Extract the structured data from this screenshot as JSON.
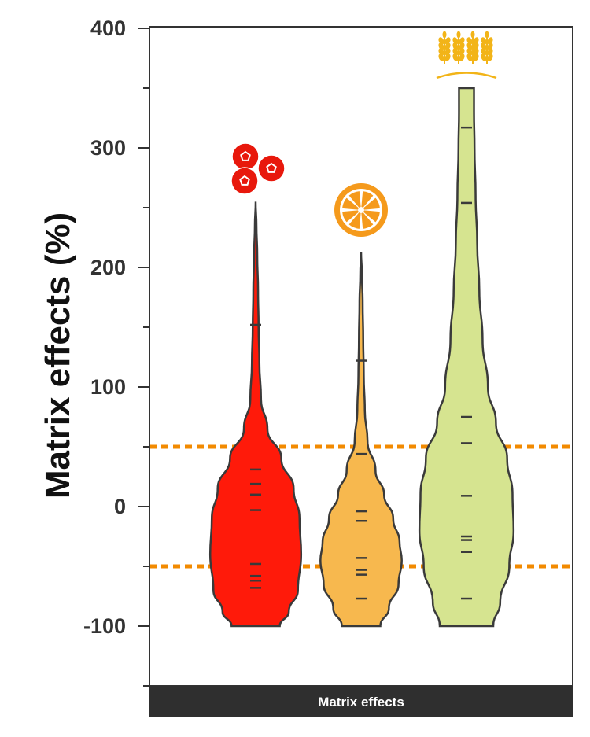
{
  "chart_data": {
    "type": "violin",
    "ylabel": "Matrix effects (%)",
    "xlabel": "Matrix effects",
    "ylim": [
      -150,
      400
    ],
    "yticks": [
      400,
      300,
      200,
      100,
      0,
      -100
    ],
    "ytick_labels": [
      "400",
      "300",
      "200",
      "100",
      "0",
      "-100"
    ],
    "reference_lines": [
      50,
      -50
    ],
    "reference_line_color": "#f28a00",
    "series": [
      {
        "icon": "berries-icon",
        "color": "#ff1a0a",
        "range": [
          -100,
          255
        ],
        "points": [
          152,
          31,
          19,
          10,
          -3,
          -48,
          -58,
          -62,
          -68
        ],
        "profile": [
          [
            -100,
            0.45
          ],
          [
            -88,
            0.62
          ],
          [
            -70,
            0.79
          ],
          [
            -40,
            0.85
          ],
          [
            -10,
            0.82
          ],
          [
            15,
            0.71
          ],
          [
            40,
            0.48
          ],
          [
            65,
            0.22
          ],
          [
            90,
            0.1
          ],
          [
            120,
            0.07
          ],
          [
            150,
            0.055
          ],
          [
            180,
            0.045
          ],
          [
            210,
            0.03
          ],
          [
            235,
            0.015
          ],
          [
            255,
            0
          ]
        ]
      },
      {
        "icon": "orange-icon",
        "color": "#f7b84e",
        "range": [
          -100,
          213
        ],
        "points": [
          122,
          44,
          -4,
          -12,
          -43,
          -53,
          -57,
          -77
        ],
        "profile": [
          [
            -100,
            0.36
          ],
          [
            -85,
            0.52
          ],
          [
            -65,
            0.7
          ],
          [
            -45,
            0.76
          ],
          [
            -30,
            0.72
          ],
          [
            -10,
            0.6
          ],
          [
            10,
            0.43
          ],
          [
            30,
            0.27
          ],
          [
            55,
            0.12
          ],
          [
            80,
            0.07
          ],
          [
            110,
            0.05
          ],
          [
            140,
            0.04
          ],
          [
            170,
            0.03
          ],
          [
            195,
            0.015
          ],
          [
            213,
            0
          ]
        ]
      },
      {
        "icon": "wheat-icon",
        "color": "#d6e490",
        "range": [
          -100,
          350
        ],
        "points": [
          317,
          254,
          75,
          53,
          9,
          -25,
          -28,
          -38,
          -77
        ],
        "profile": [
          [
            -100,
            0.5
          ],
          [
            -80,
            0.63
          ],
          [
            -50,
            0.8
          ],
          [
            -20,
            0.88
          ],
          [
            10,
            0.86
          ],
          [
            40,
            0.76
          ],
          [
            70,
            0.55
          ],
          [
            100,
            0.4
          ],
          [
            140,
            0.3
          ],
          [
            180,
            0.24
          ],
          [
            220,
            0.2
          ],
          [
            260,
            0.17
          ],
          [
            300,
            0.15
          ],
          [
            330,
            0.14
          ],
          [
            350,
            0.14
          ]
        ]
      }
    ]
  }
}
